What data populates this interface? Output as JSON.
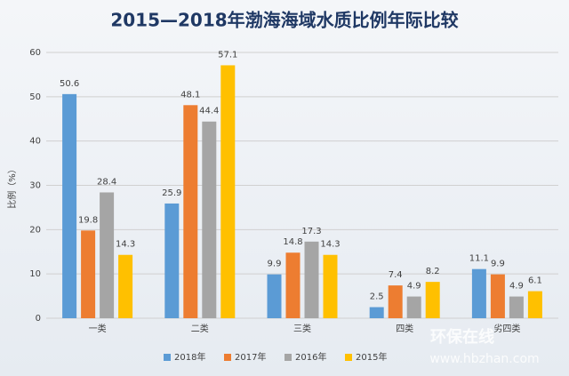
{
  "chart_data": {
    "type": "bar",
    "title": "2015—2018年渤海海域水质比例年际比较",
    "y_label": "比例（%）",
    "categories": [
      "一类",
      "二类",
      "三类",
      "四类",
      "劣四类"
    ],
    "series": [
      {
        "name": "2018年",
        "color": "#5b9bd5",
        "values": [
          50.6,
          25.9,
          9.9,
          2.5,
          11.1
        ]
      },
      {
        "name": "2017年",
        "color": "#ed7d31",
        "values": [
          19.8,
          48.1,
          14.8,
          7.4,
          9.9
        ]
      },
      {
        "name": "2016年",
        "color": "#a5a5a5",
        "values": [
          28.4,
          44.4,
          17.3,
          4.9,
          4.9
        ]
      },
      {
        "name": "2015年",
        "color": "#ffc000",
        "values": [
          14.3,
          57.1,
          14.3,
          8.2,
          6.1
        ]
      }
    ],
    "ylim": [
      0,
      60
    ],
    "yticks": [
      0,
      10,
      20,
      30,
      40,
      50,
      60
    ],
    "grid": true,
    "legend": "bottom"
  },
  "watermark": [
    "环保在线",
    "www.hbzhan.com"
  ]
}
